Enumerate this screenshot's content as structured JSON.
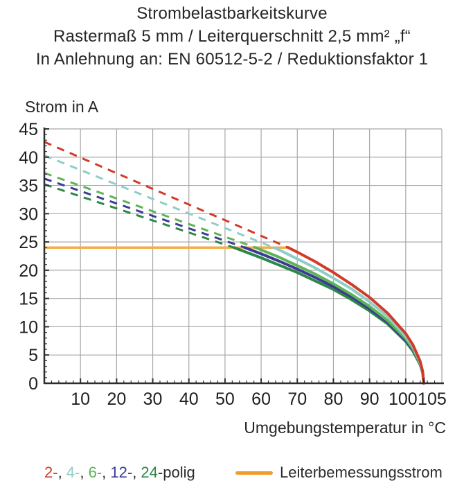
{
  "header": {
    "title": "Strombelastbarkeitskurve",
    "subtitle1": "Rastermaß 5 mm / Leiterquerschnitt 2,5 mm² „f“",
    "subtitle2": "In Anlehnung an: EN 60512-5-2 / Reduktionsfaktor 1"
  },
  "colors": {
    "grid": "#a8a8a8",
    "axis": "#2e2e2e",
    "tick_text": "#1f1f1f",
    "legend_text": "#2b2b2b"
  },
  "chart_data": {
    "type": "line",
    "title": "Strombelastbarkeitskurve",
    "xlabel": "Umgebungstemperatur in °C",
    "ylabel": "Strom in A",
    "xlim": [
      0,
      110
    ],
    "ylim": [
      0,
      45
    ],
    "x_ticks": [
      10,
      20,
      30,
      40,
      50,
      60,
      70,
      80,
      90,
      100,
      105
    ],
    "y_ticks": [
      0,
      5,
      10,
      15,
      20,
      25,
      30,
      35,
      40,
      45
    ],
    "x_minor_step": 2,
    "y_minor_step": 1,
    "grid": true,
    "legend_position": "bottom",
    "rated_line": {
      "label": "Leiterbemessungsstrom",
      "value": 24,
      "x_start": 0,
      "x_end": 68,
      "color": "#f2ae4d"
    },
    "series": [
      {
        "name": "2-polig",
        "color": "#d23b2a",
        "style": "dashed-then-solid",
        "dashed": [
          [
            0,
            42.7
          ],
          [
            67.5,
            24
          ]
        ],
        "solid": [
          [
            67.5,
            24
          ],
          [
            70,
            23.2
          ],
          [
            75,
            21.5
          ],
          [
            80,
            19.6
          ],
          [
            85,
            17.5
          ],
          [
            90,
            15.2
          ],
          [
            95,
            12.4
          ],
          [
            100,
            8.8
          ],
          [
            102,
            6.8
          ],
          [
            104,
            3.9
          ],
          [
            104.7,
            2.1
          ],
          [
            105,
            0
          ]
        ]
      },
      {
        "name": "4-polig",
        "color": "#8fcdc9",
        "style": "dashed-then-solid",
        "dashed": [
          [
            0,
            40.3
          ],
          [
            63.5,
            24
          ]
        ],
        "solid": [
          [
            63.5,
            24
          ],
          [
            65,
            23.6
          ],
          [
            70,
            22.0
          ],
          [
            75,
            20.4
          ],
          [
            80,
            18.6
          ],
          [
            85,
            16.7
          ],
          [
            90,
            14.4
          ],
          [
            95,
            11.8
          ],
          [
            100,
            8.3
          ],
          [
            102,
            6.5
          ],
          [
            104,
            3.7
          ],
          [
            104.7,
            2.0
          ],
          [
            105,
            0
          ]
        ]
      },
      {
        "name": "6-polig",
        "color": "#5cb456",
        "style": "dashed-then-solid",
        "dashed": [
          [
            0,
            37.2
          ],
          [
            58.5,
            24
          ]
        ],
        "solid": [
          [
            58.5,
            24
          ],
          [
            60,
            23.6
          ],
          [
            65,
            22.3
          ],
          [
            70,
            20.8
          ],
          [
            75,
            19.3
          ],
          [
            80,
            17.6
          ],
          [
            85,
            15.7
          ],
          [
            90,
            13.6
          ],
          [
            95,
            11.1
          ],
          [
            100,
            7.9
          ],
          [
            102,
            6.1
          ],
          [
            104,
            3.5
          ],
          [
            104.7,
            1.9
          ],
          [
            105,
            0
          ]
        ]
      },
      {
        "name": "12-polig",
        "color": "#3c3a96",
        "style": "dashed-then-solid",
        "dashed": [
          [
            0,
            36.2
          ],
          [
            55.5,
            24
          ]
        ],
        "solid": [
          [
            55.5,
            24
          ],
          [
            60,
            22.9
          ],
          [
            65,
            21.6
          ],
          [
            70,
            20.2
          ],
          [
            75,
            18.7
          ],
          [
            80,
            17.1
          ],
          [
            85,
            15.3
          ],
          [
            90,
            13.2
          ],
          [
            95,
            10.8
          ],
          [
            100,
            7.6
          ],
          [
            102,
            5.9
          ],
          [
            104,
            3.4
          ],
          [
            104.7,
            1.9
          ],
          [
            105,
            0
          ]
        ]
      },
      {
        "name": "24-polig",
        "color": "#2c8844",
        "style": "dashed-then-solid",
        "dashed": [
          [
            0,
            35.2
          ],
          [
            52.5,
            24
          ]
        ],
        "solid": [
          [
            52.5,
            24
          ],
          [
            55,
            23.4
          ],
          [
            60,
            22.2
          ],
          [
            65,
            20.9
          ],
          [
            70,
            19.6
          ],
          [
            75,
            18.1
          ],
          [
            80,
            16.6
          ],
          [
            85,
            14.8
          ],
          [
            90,
            12.8
          ],
          [
            95,
            10.5
          ],
          [
            100,
            7.4
          ],
          [
            102,
            5.7
          ],
          [
            104,
            3.3
          ],
          [
            104.7,
            1.8
          ],
          [
            105,
            0
          ]
        ]
      }
    ]
  },
  "legend": {
    "pole_items": [
      {
        "text": "2-",
        "color": "#d23b2a"
      },
      {
        "text": ", ",
        "color": "#2b2b2b"
      },
      {
        "text": "4-",
        "color": "#8fcdc9"
      },
      {
        "text": ", ",
        "color": "#2b2b2b"
      },
      {
        "text": "6-",
        "color": "#5cb456"
      },
      {
        "text": ", ",
        "color": "#2b2b2b"
      },
      {
        "text": "12-",
        "color": "#3c3a96"
      },
      {
        "text": ", ",
        "color": "#2b2b2b"
      },
      {
        "text": "24",
        "color": "#2c8844"
      },
      {
        "text": "-polig",
        "color": "#2b2b2b"
      }
    ],
    "rated_label": "Leiterbemessungsstrom",
    "rated_swatch_color": "#ef9e2e"
  }
}
